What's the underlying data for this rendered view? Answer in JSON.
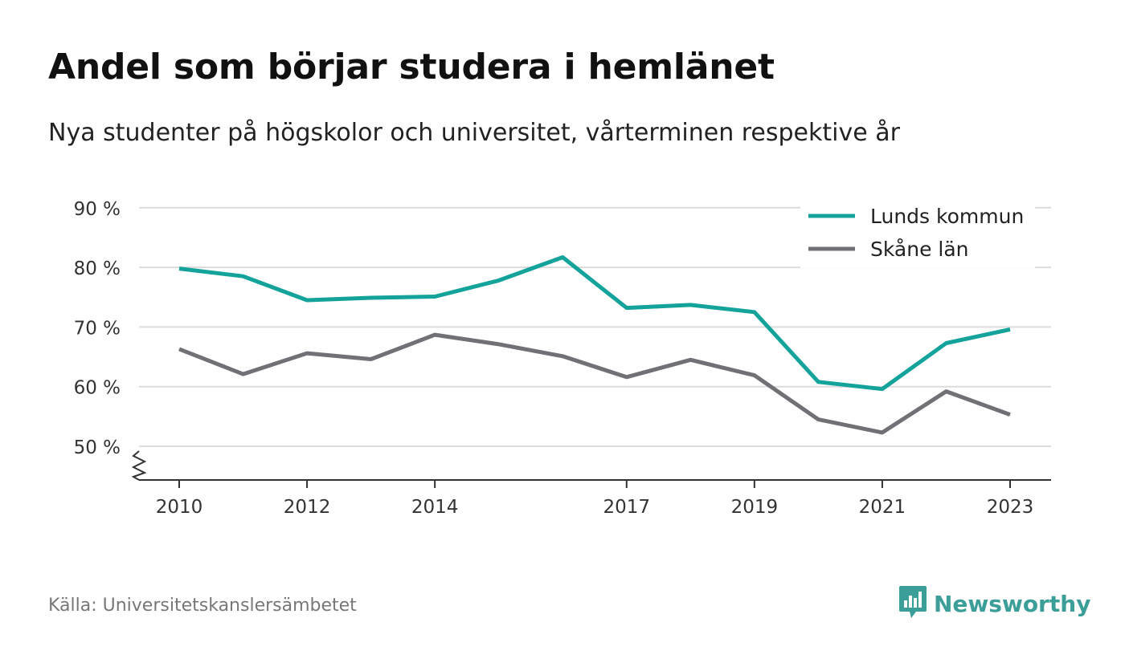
{
  "title": "Andel som börjar studera i hemlänet",
  "subtitle": "Nya studenter på högskolor och universitet, vårterminen respektive år",
  "source": "Källa: Universitetskanslersämbetet",
  "brand": {
    "name": "Newsworthy",
    "icon": "newsworthy-logo-icon",
    "color": "#3b9e99"
  },
  "chart_data": {
    "type": "line",
    "x": [
      2010,
      2011,
      2012,
      2013,
      2014,
      2015,
      2016,
      2017,
      2018,
      2019,
      2020,
      2021,
      2022,
      2023
    ],
    "x_tick_labels": [
      "2010",
      "2012",
      "2014",
      "2017",
      "2019",
      "2021",
      "2023"
    ],
    "y_ticks": [
      50,
      60,
      70,
      80,
      90
    ],
    "y_tick_labels": [
      "50 %",
      "60 %",
      "70 %",
      "80 %",
      "90 %"
    ],
    "ylim": [
      44.5,
      90
    ],
    "y_axis_break": true,
    "grid": true,
    "legend_position": "top-right",
    "series": [
      {
        "name": "Lunds kommun",
        "color": "#13a39a",
        "values": [
          79.8,
          78.5,
          74.5,
          74.9,
          75.1,
          77.8,
          81.7,
          73.2,
          73.7,
          72.5,
          60.8,
          59.6,
          67.3,
          69.6
        ]
      },
      {
        "name": "Skåne län",
        "color": "#707077",
        "values": [
          66.3,
          62.1,
          65.6,
          64.6,
          68.7,
          67.1,
          65.1,
          61.6,
          64.5,
          61.9,
          54.5,
          52.3,
          59.2,
          55.3
        ]
      }
    ]
  }
}
